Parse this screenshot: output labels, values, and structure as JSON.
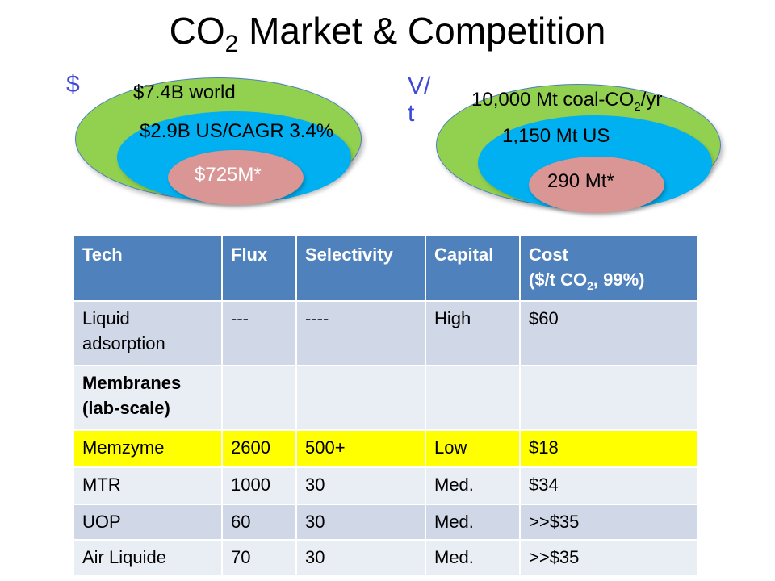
{
  "slide": {
    "title_main": "CO",
    "title_sub": "2",
    "title_rest": " Market & Competition"
  },
  "left_chart": {
    "axis_label": "$",
    "outer_label": "$7.4B world",
    "middle_label": "$2.9B US/CAGR 3.4%",
    "inner_label": "$725M*",
    "colors": {
      "outer": "#92d050",
      "middle": "#00b0f0",
      "inner": "#d99694"
    }
  },
  "right_chart": {
    "axis_label_line1": "V/",
    "axis_label_line2": "t",
    "outer_label_pre": "10,000 Mt coal-CO",
    "outer_label_sub": "2",
    "outer_label_post": "/yr",
    "middle_label": "1,150 Mt US",
    "inner_label": "290 Mt*",
    "colors": {
      "outer": "#92d050",
      "middle": "#00b0f0",
      "inner": "#d99694"
    }
  },
  "table": {
    "headers": {
      "tech": "Tech",
      "flux": "Flux",
      "selectivity": "Selectivity",
      "capital": "Capital",
      "cost_line1": "Cost",
      "cost_line2_pre": "($/t CO",
      "cost_line2_sub": "2",
      "cost_line2_post": ", 99%)"
    },
    "rows": [
      {
        "tech": "Liquid adsorption",
        "flux": "---",
        "selectivity": "----",
        "capital": "High",
        "cost": "$60"
      },
      {
        "tech": "Membranes (lab-scale)",
        "flux": "",
        "selectivity": "",
        "capital": "",
        "cost": ""
      },
      {
        "tech": "Memzyme",
        "flux": "2600",
        "selectivity": "500+",
        "capital": "Low",
        "cost": "$18"
      },
      {
        "tech": "MTR",
        "flux": "1000",
        "selectivity": "30",
        "capital": "Med.",
        "cost": "$34"
      },
      {
        "tech": "UOP",
        "flux": "60",
        "selectivity": "30",
        "capital": "Med.",
        "cost": ">>$35"
      },
      {
        "tech": "Air Liquide",
        "flux": "70",
        "selectivity": "30",
        "capital": "Med.",
        "cost": ">>$35"
      }
    ],
    "colors": {
      "header": "#4f81bd",
      "row_dark": "#d0d8e8",
      "row_light": "#e9edf4",
      "highlight": "#ffff00"
    }
  }
}
